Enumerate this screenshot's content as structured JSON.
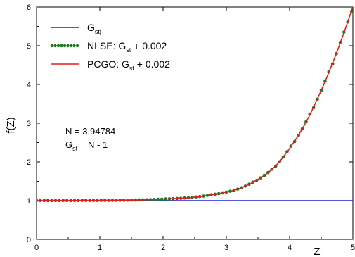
{
  "chart_data": {
    "type": "line",
    "xlabel": "Z",
    "ylabel": "f(Z)",
    "xlim": [
      0,
      5
    ],
    "ylim": [
      0,
      6
    ],
    "x_ticks": [
      "0",
      "1",
      "2",
      "3",
      "4",
      "5"
    ],
    "y_ticks": [
      "0",
      "1",
      "2",
      "3",
      "4",
      "5",
      "6"
    ],
    "grid": false,
    "legend_position": "top-left",
    "series": [
      {
        "name_main": "G",
        "name_sub": "stj",
        "name_suffix": "",
        "color": "#1f1fd8",
        "style": "solid",
        "x": [
          0,
          5
        ],
        "y": [
          1,
          1
        ]
      },
      {
        "name_main": "NLSE: G",
        "name_sub": "st",
        "name_suffix": " + 0.002",
        "color": "#1a7a1a",
        "style": "dotted",
        "x": [
          0,
          0.5,
          1.0,
          1.5,
          2.0,
          2.5,
          3.0,
          3.25,
          3.5,
          3.75,
          4.0,
          4.25,
          4.5,
          4.75,
          5.0
        ],
        "y": [
          1.002,
          1.003,
          1.006,
          1.015,
          1.04,
          1.09,
          1.22,
          1.34,
          1.55,
          1.85,
          2.35,
          3.0,
          3.85,
          4.85,
          6.0
        ]
      },
      {
        "name_main": "PCGO: G",
        "name_sub": "st",
        "name_suffix": " + 0.002",
        "color": "#e02020",
        "style": "solid",
        "x": [
          0,
          0.5,
          1.0,
          1.5,
          2.0,
          2.5,
          3.0,
          3.25,
          3.5,
          3.75,
          4.0,
          4.25,
          4.5,
          4.75,
          5.0
        ],
        "y": [
          1.002,
          1.003,
          1.006,
          1.015,
          1.04,
          1.09,
          1.22,
          1.34,
          1.55,
          1.85,
          2.35,
          3.0,
          3.85,
          4.85,
          6.0
        ]
      }
    ],
    "annotations": [
      {
        "main": "N = 3.94784",
        "sub": "",
        "suffix": ""
      },
      {
        "main": "G",
        "sub": "st",
        "suffix": " = N - 1"
      }
    ]
  }
}
